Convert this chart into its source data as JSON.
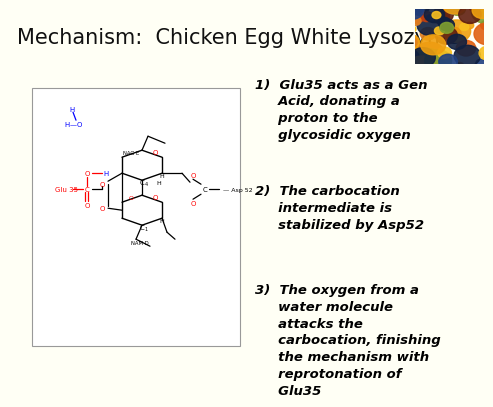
{
  "title": "Mechanism:  Chicken Egg White Lysozyme",
  "title_bg": "#6dcdd0",
  "slide_bg": "#fffff5",
  "title_fontsize": 15,
  "text_items": [
    "1)  Glu35 acts as a Gen\n     Acid, donating a\n     proton to the\n     glycosidic oxygen",
    "2)  The carbocation\n     intermediate is\n     stabilized by Asp52",
    "3)  The oxygen from a\n     water molecule\n     attacks the\n     carbocation, finishing\n     the mechanism with\n     reprotonation of\n     Glu35"
  ],
  "text_fontsize": 9.5
}
